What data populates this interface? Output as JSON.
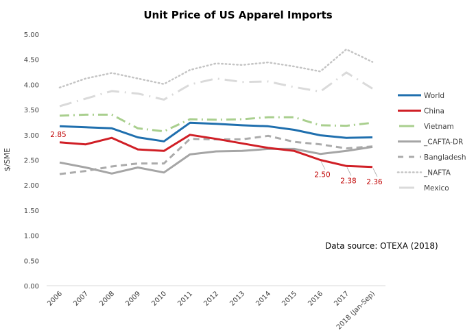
{
  "chart_data": {
    "type": "line",
    "title": "Unit Price of US Apparel Imports",
    "xlabel": "",
    "ylabel": "$/SME",
    "ylim": [
      0,
      5
    ],
    "yticks": [
      "0.00",
      "0.50",
      "1.00",
      "1.50",
      "2.00",
      "2.50",
      "3.00",
      "3.50",
      "4.00",
      "4.50",
      "5.00"
    ],
    "grid": false,
    "legend_position": "right",
    "categories": [
      "2006",
      "2007",
      "2008",
      "2009",
      "2010",
      "2011",
      "2012",
      "2013",
      "2014",
      "2015",
      "2016",
      "2017",
      "2018 (Jan-Sep)"
    ],
    "series": [
      {
        "name": "World",
        "color": "#1f6fae",
        "style": "solid",
        "values": [
          3.17,
          3.15,
          3.13,
          2.95,
          2.87,
          3.24,
          3.22,
          3.19,
          3.17,
          3.1,
          2.99,
          2.94,
          2.95
        ]
      },
      {
        "name": "China",
        "color": "#d01f26",
        "style": "solid",
        "values": [
          2.85,
          2.81,
          2.94,
          2.71,
          2.68,
          3.0,
          2.92,
          2.83,
          2.74,
          2.68,
          2.5,
          2.38,
          2.36
        ]
      },
      {
        "name": "Vietnam",
        "color": "#a9cf8e",
        "style": "dashdot",
        "values": [
          3.38,
          3.4,
          3.4,
          3.13,
          3.07,
          3.31,
          3.3,
          3.31,
          3.35,
          3.35,
          3.19,
          3.18,
          3.24
        ]
      },
      {
        "name": "_CAFTA-DR",
        "color": "#a5a5a5",
        "style": "solid",
        "values": [
          2.45,
          2.35,
          2.23,
          2.35,
          2.25,
          2.61,
          2.67,
          2.68,
          2.72,
          2.72,
          2.62,
          2.68,
          2.76
        ]
      },
      {
        "name": "Bangladesh",
        "color": "#ababab",
        "style": "dash",
        "values": [
          2.22,
          2.28,
          2.37,
          2.43,
          2.43,
          2.92,
          2.91,
          2.91,
          2.98,
          2.86,
          2.81,
          2.73,
          2.77
        ]
      },
      {
        "name": "_NAFTA",
        "color": "#c4c4c4",
        "style": "dot",
        "values": [
          3.94,
          4.12,
          4.23,
          4.12,
          4.01,
          4.29,
          4.42,
          4.39,
          4.44,
          4.36,
          4.26,
          4.7,
          4.45
        ]
      },
      {
        "name": "Mexico",
        "color": "#dadada",
        "style": "longdashdot",
        "values": [
          3.57,
          3.72,
          3.87,
          3.82,
          3.7,
          4.0,
          4.12,
          4.05,
          4.06,
          3.95,
          3.86,
          4.24,
          3.92
        ]
      }
    ],
    "data_labels": [
      {
        "series": "China",
        "category": "2006",
        "text": "2.85"
      },
      {
        "series": "China",
        "category": "2016",
        "text": "2.50"
      },
      {
        "series": "China",
        "category": "2017",
        "text": "2.38"
      },
      {
        "series": "China",
        "category": "2018 (Jan-Sep)",
        "text": "2.36"
      }
    ],
    "annotations": [
      "Data source: OTEXA (2018)"
    ]
  }
}
